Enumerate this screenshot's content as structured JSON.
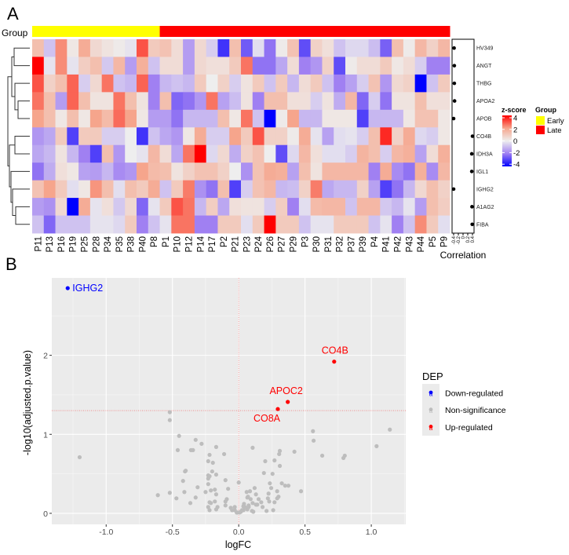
{
  "panels": {
    "a_label": "A",
    "b_label": "B"
  },
  "colors": {
    "early": "#ffff00",
    "late": "#ff0000",
    "down": "#0000ff",
    "up": "#ff0000",
    "ns": "#bdbdbd",
    "panel_bg": "#ebebeb",
    "z_neg": "#0000ff",
    "z_mid": "#eeeeee",
    "z_pos": "#ff0000"
  },
  "chart_data": [
    {
      "type": "heatmap",
      "title": "",
      "annotation_label": "Group",
      "columns": [
        "P11",
        "P13",
        "P16",
        "P19",
        "P25",
        "P28",
        "P34",
        "P35",
        "P38",
        "P40",
        "P8",
        "P1",
        "P10",
        "P12",
        "P14",
        "P17",
        "P2",
        "P21",
        "P23",
        "P24",
        "P26",
        "P27",
        "P29",
        "P3",
        "P30",
        "P31",
        "P32",
        "P37",
        "P39",
        "P4",
        "P41",
        "P42",
        "P43",
        "P44",
        "P5",
        "P9"
      ],
      "column_groups": [
        "Early",
        "Early",
        "Early",
        "Early",
        "Early",
        "Early",
        "Early",
        "Early",
        "Early",
        "Early",
        "Early",
        "Late",
        "Late",
        "Late",
        "Late",
        "Late",
        "Late",
        "Late",
        "Late",
        "Late",
        "Late",
        "Late",
        "Late",
        "Late",
        "Late",
        "Late",
        "Late",
        "Late",
        "Late",
        "Late",
        "Late",
        "Late",
        "Late",
        "Late",
        "Late",
        "Late"
      ],
      "rows": [
        "HV349",
        "ANGT",
        "THBG",
        "APOA2",
        "APOB",
        "CO4B",
        "IDH3A",
        "IGL1",
        "IGHG2",
        "A1AG2",
        "FIBA"
      ],
      "values": [
        [
          1.3,
          -0.8,
          2.3,
          0.2,
          1.8,
          0.6,
          0.3,
          0.1,
          -0.2,
          3.0,
          1.0,
          1.2,
          0.5,
          -1.5,
          0.6,
          -0.6,
          -3.2,
          1.3,
          -2.6,
          -0.3,
          -2.2,
          0.1,
          1.2,
          -2.8,
          0.8,
          0.4,
          -0.8,
          -0.4,
          -0.4,
          -0.9,
          -2.5,
          1.3,
          0.1,
          1.5,
          0.8,
          1.5
        ],
        [
          4.0,
          -0.2,
          2.3,
          -0.2,
          0.9,
          1.3,
          -0.7,
          1.5,
          -1.5,
          1.7,
          -0.8,
          0.5,
          0.5,
          -1.5,
          0.6,
          0.4,
          0.4,
          1.0,
          2.6,
          -2.2,
          -2.2,
          -1.3,
          0.5,
          -2.0,
          -1.6,
          0.8,
          -2.8,
          0.1,
          0.5,
          0.5,
          1.0,
          0.2,
          0.5,
          -0.6,
          -2.0,
          -2.0
        ],
        [
          3.0,
          0.8,
          1.3,
          2.8,
          -0.6,
          0.6,
          2.6,
          -0.8,
          -1.0,
          2.8,
          -2.0,
          -1.0,
          -0.8,
          -1.0,
          1.0,
          0.0,
          0.8,
          -0.6,
          0.3,
          1.0,
          -0.8,
          1.0,
          -1.0,
          0.5,
          1.0,
          -0.8,
          -2.0,
          -1.4,
          -0.6,
          1.2,
          -1.6,
          0.6,
          0.8,
          -4.0,
          -0.8,
          1.0
        ],
        [
          2.6,
          1.3,
          -1.5,
          2.8,
          1.3,
          0.3,
          0.3,
          2.6,
          1.3,
          0.3,
          -2.0,
          1.3,
          -2.4,
          -2.2,
          -1.6,
          2.6,
          -1.4,
          -0.9,
          0.3,
          -2.0,
          1.3,
          1.3,
          0.4,
          0.4,
          -0.6,
          0.3,
          -1.2,
          1.5,
          -2.4,
          -0.6,
          -2.2,
          0.3,
          0.3,
          1.3,
          0.4,
          0.4
        ],
        [
          2.0,
          1.3,
          0.2,
          1.3,
          0.2,
          2.0,
          1.4,
          2.7,
          2.0,
          0.2,
          -1.5,
          -1.5,
          -2.2,
          -1.0,
          -1.0,
          -1.0,
          1.3,
          0.2,
          2.6,
          -0.8,
          -4.0,
          0.1,
          2.0,
          -1.0,
          -1.0,
          0.2,
          0.2,
          0.2,
          -3.0,
          -1.0,
          -1.0,
          -1.0,
          0.2,
          1.2,
          1.2,
          0.2
        ],
        [
          -1.6,
          -1.3,
          1.0,
          -3.0,
          1.0,
          1.0,
          -0.6,
          -0.6,
          0.0,
          -3.2,
          -0.8,
          -1.3,
          -1.6,
          0.2,
          1.8,
          -0.6,
          -0.6,
          2.0,
          1.0,
          3.0,
          0.8,
          0.8,
          0.1,
          1.8,
          -0.2,
          -1.4,
          -0.3,
          -0.2,
          -0.6,
          1.3,
          3.5,
          0.8,
          1.8,
          -0.4,
          -0.6,
          0.2
        ],
        [
          -1.3,
          -1.0,
          0.3,
          -1.0,
          -2.0,
          -3.0,
          1.3,
          -1.6,
          0.0,
          -0.2,
          1.5,
          0.5,
          -1.3,
          2.6,
          4.0,
          -0.4,
          0.6,
          -1.2,
          0.8,
          1.2,
          0.0,
          -2.8,
          -0.4,
          1.5,
          0.4,
          -0.3,
          -0.3,
          -0.6,
          1.6,
          1.3,
          -0.6,
          1.5,
          1.7,
          -1.4,
          0.5,
          1.7
        ],
        [
          -2.2,
          -1.2,
          0.4,
          0.2,
          -1.4,
          -1.5,
          -1.0,
          -1.8,
          -1.6,
          2.0,
          1.4,
          1.3,
          0.3,
          0.8,
          1.2,
          1.2,
          0.8,
          0.0,
          -1.7,
          1.2,
          1.8,
          1.7,
          -1.4,
          1.3,
          0.3,
          1.5,
          1.5,
          1.5,
          1.5,
          -2.0,
          1.8,
          -1.8,
          -2.2,
          1.7,
          -1.8,
          1.5
        ],
        [
          1.2,
          2.0,
          1.0,
          -0.3,
          0.2,
          2.2,
          1.3,
          -0.3,
          1.3,
          1.0,
          1.8,
          -0.8,
          1.0,
          2.5,
          -1.7,
          -2.2,
          1.3,
          -3.0,
          -0.6,
          1.2,
          1.5,
          -1.0,
          -0.9,
          0.8,
          2.5,
          -1.3,
          -1.0,
          -1.0,
          0.8,
          -1.4,
          -3.0,
          -2.2,
          -1.0,
          0.6,
          1.3,
          0.8
        ],
        [
          -1.5,
          -1.7,
          0.6,
          -4.0,
          1.8,
          -0.2,
          0.4,
          -0.7,
          0.6,
          -2.4,
          -0.2,
          1.0,
          3.0,
          2.6,
          -1.0,
          0.9,
          -1.3,
          0.4,
          0.3,
          0.3,
          -0.6,
          0.9,
          -2.0,
          -0.3,
          1.4,
          1.5,
          1.5,
          -0.8,
          1.5,
          1.5,
          -0.7,
          -1.0,
          -0.2,
          -1.5,
          1.3,
          0.9
        ],
        [
          -0.8,
          -2.4,
          -0.8,
          -0.8,
          -0.8,
          -0.2,
          -0.2,
          -0.4,
          1.0,
          -2.0,
          -0.8,
          -0.2,
          2.6,
          2.6,
          -2.0,
          -2.0,
          1.0,
          1.0,
          -0.3,
          1.0,
          4.0,
          1.0,
          1.0,
          -0.8,
          -0.2,
          -0.2,
          1.0,
          1.0,
          1.0,
          -0.8,
          -0.2,
          -2.0,
          -0.8,
          2.3,
          1.0,
          -0.3
        ]
      ],
      "correlation": {
        "label": "Correlation",
        "ticks": [
          "-0.4",
          "-0.2",
          "0",
          "0.2",
          "0.4"
        ],
        "range": [
          -0.4,
          0.4
        ],
        "values": [
          -0.38,
          -0.37,
          -0.37,
          -0.36,
          -0.4,
          0.4,
          0.37,
          0.37,
          -0.4,
          0.38,
          0.39
        ]
      },
      "zscore_legend": {
        "title": "z-score",
        "ticks": [
          "4",
          "2",
          "0",
          "-2",
          "-4"
        ],
        "range": [
          -4,
          4
        ]
      },
      "group_legend": {
        "title": "Group",
        "entries": [
          "Early",
          "Late"
        ]
      }
    },
    {
      "type": "scatter",
      "title": "",
      "xlabel": "logFC",
      "ylabel": "-log10(adjusted.p.value)",
      "xlim": [
        -1.41,
        1.26
      ],
      "ylim": [
        -0.14,
        2.98
      ],
      "xticks": [
        -1.0,
        -0.5,
        0.0,
        0.5,
        1.0
      ],
      "xtick_labels": [
        "-1.0",
        "-0.5",
        "0.0",
        "0.5",
        "1.0"
      ],
      "yticks": [
        0,
        1,
        2
      ],
      "ytick_labels": [
        "0",
        "1",
        "2"
      ],
      "grid": true,
      "hline": 1.3,
      "vline": 0,
      "legend": {
        "title": "DEP",
        "position": "right",
        "entries": [
          "Down-regulated",
          "Non-significance",
          "Up-regulated"
        ],
        "key_glyph": "a"
      },
      "labeled_points": [
        {
          "label": "IGHG2",
          "x": -1.29,
          "y": 2.85,
          "class": "Down-regulated"
        },
        {
          "label": "CO4B",
          "x": 0.72,
          "y": 1.92,
          "class": "Up-regulated"
        },
        {
          "label": "APOC2",
          "x": 0.37,
          "y": 1.41,
          "class": "Up-regulated"
        },
        {
          "label": "CO8A",
          "x": 0.295,
          "y": 1.32,
          "class": "Up-regulated"
        }
      ],
      "ns_points": [
        [
          -1.2,
          0.71
        ],
        [
          -0.52,
          1.28
        ],
        [
          -0.52,
          1.18
        ],
        [
          -0.45,
          0.98
        ],
        [
          -0.46,
          0.8
        ],
        [
          -0.36,
          0.8
        ],
        [
          -0.345,
          0.8
        ],
        [
          -0.325,
          0.93
        ],
        [
          -0.28,
          0.88
        ],
        [
          -0.17,
          0.84
        ],
        [
          -0.22,
          0.74
        ],
        [
          -0.11,
          0.75
        ],
        [
          -0.23,
          0.66
        ],
        [
          -0.195,
          0.64
        ],
        [
          -0.405,
          0.53
        ],
        [
          -0.4,
          0.54
        ],
        [
          -0.2,
          0.53
        ],
        [
          -0.17,
          0.49
        ],
        [
          -0.23,
          0.48
        ],
        [
          -0.22,
          0.47
        ],
        [
          -0.23,
          0.44
        ],
        [
          -0.42,
          0.41
        ],
        [
          -0.1,
          0.42
        ],
        [
          0.0,
          0.39
        ],
        [
          -0.23,
          0.37
        ],
        [
          -0.31,
          0.33
        ],
        [
          -0.41,
          0.27
        ],
        [
          -0.52,
          0.26
        ],
        [
          -0.61,
          0.23
        ],
        [
          -0.47,
          0.19
        ],
        [
          -0.325,
          0.2
        ],
        [
          -0.25,
          0.27
        ],
        [
          -0.21,
          0.29
        ],
        [
          -0.18,
          0.3
        ],
        [
          -0.08,
          0.31
        ],
        [
          -0.17,
          0.24
        ],
        [
          -0.18,
          0.15
        ],
        [
          -0.09,
          0.18
        ],
        [
          -0.1,
          0.15
        ],
        [
          -0.22,
          0.14
        ],
        [
          -0.21,
          0.13
        ],
        [
          -0.365,
          0.13
        ],
        [
          -0.23,
          0.08
        ],
        [
          -0.22,
          0.04
        ],
        [
          -0.16,
          0.08
        ],
        [
          -0.17,
          0.05
        ],
        [
          -0.1,
          0.1
        ],
        [
          -0.06,
          0.07
        ],
        [
          -0.05,
          0.04
        ],
        [
          -0.03,
          0.04
        ],
        [
          -0.03,
          0.08
        ],
        [
          -0.01,
          0.01
        ],
        [
          0.016,
          0.02
        ],
        [
          0.036,
          0.04
        ],
        [
          0.046,
          0.08
        ],
        [
          0.065,
          0.05
        ],
        [
          0.075,
          0.1
        ],
        [
          0.06,
          0.27
        ],
        [
          0.085,
          0.28
        ],
        [
          0.12,
          0.32
        ],
        [
          0.065,
          0.2
        ],
        [
          0.09,
          0.18
        ],
        [
          0.1,
          0.03
        ],
        [
          0.13,
          0.11
        ],
        [
          0.105,
          0.83
        ],
        [
          0.56,
          1.04
        ],
        [
          0.565,
          0.92
        ],
        [
          1.14,
          1.06
        ],
        [
          1.04,
          0.85
        ],
        [
          0.42,
          0.78
        ],
        [
          0.31,
          0.79
        ],
        [
          0.305,
          0.75
        ],
        [
          0.63,
          0.73
        ],
        [
          0.8,
          0.73
        ],
        [
          0.79,
          0.7
        ],
        [
          0.2,
          0.66
        ],
        [
          0.27,
          0.67
        ],
        [
          0.31,
          0.6
        ],
        [
          0.19,
          0.51
        ],
        [
          0.255,
          0.5
        ],
        [
          0.325,
          0.38
        ],
        [
          0.35,
          0.35
        ],
        [
          0.375,
          0.35
        ],
        [
          0.235,
          0.38
        ],
        [
          0.245,
          0.32
        ],
        [
          0.47,
          0.28
        ],
        [
          0.29,
          0.28
        ],
        [
          0.225,
          0.25
        ],
        [
          0.3,
          0.21
        ],
        [
          0.29,
          0.19
        ],
        [
          0.22,
          0.19
        ],
        [
          0.23,
          0.15
        ],
        [
          0.27,
          0.14
        ],
        [
          0.15,
          0.18
        ],
        [
          0.17,
          0.14
        ],
        [
          0.13,
          0.24
        ],
        [
          0.07,
          0.21
        ],
        [
          0.04,
          0.12
        ],
        [
          0.035,
          0.09
        ],
        [
          0.18,
          0.08
        ],
        [
          0.21,
          0.03
        ],
        [
          0.26,
          0.04
        ],
        [
          0.11,
          0.02
        ],
        [
          0.075,
          0.08
        ],
        [
          0.025,
          0.04
        ],
        [
          0.005,
          0.01
        ],
        [
          -0.015,
          0.01
        ],
        [
          0.14,
          0.11
        ],
        [
          0.105,
          0.13
        ]
      ]
    }
  ]
}
